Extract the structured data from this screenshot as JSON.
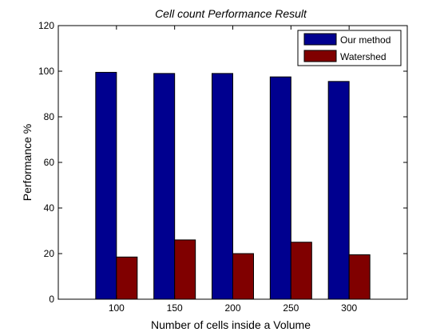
{
  "chart_data": {
    "type": "bar",
    "title": "Cell count Performance Result",
    "xlabel": "Number of cells inside a Volume",
    "ylabel": "Performance %",
    "categories": [
      "100",
      "150",
      "200",
      "250",
      "300"
    ],
    "ylim": [
      0,
      120
    ],
    "yticks": [
      0,
      20,
      40,
      60,
      80,
      100,
      120
    ],
    "grid": false,
    "legend_position": "top-right",
    "series": [
      {
        "name": "Our method",
        "color": "#00008f",
        "values": [
          99.5,
          99,
          99,
          97.5,
          95.5
        ]
      },
      {
        "name": "Watershed",
        "color": "#800000",
        "values": [
          18.5,
          26,
          20,
          25,
          19.5
        ]
      }
    ]
  }
}
